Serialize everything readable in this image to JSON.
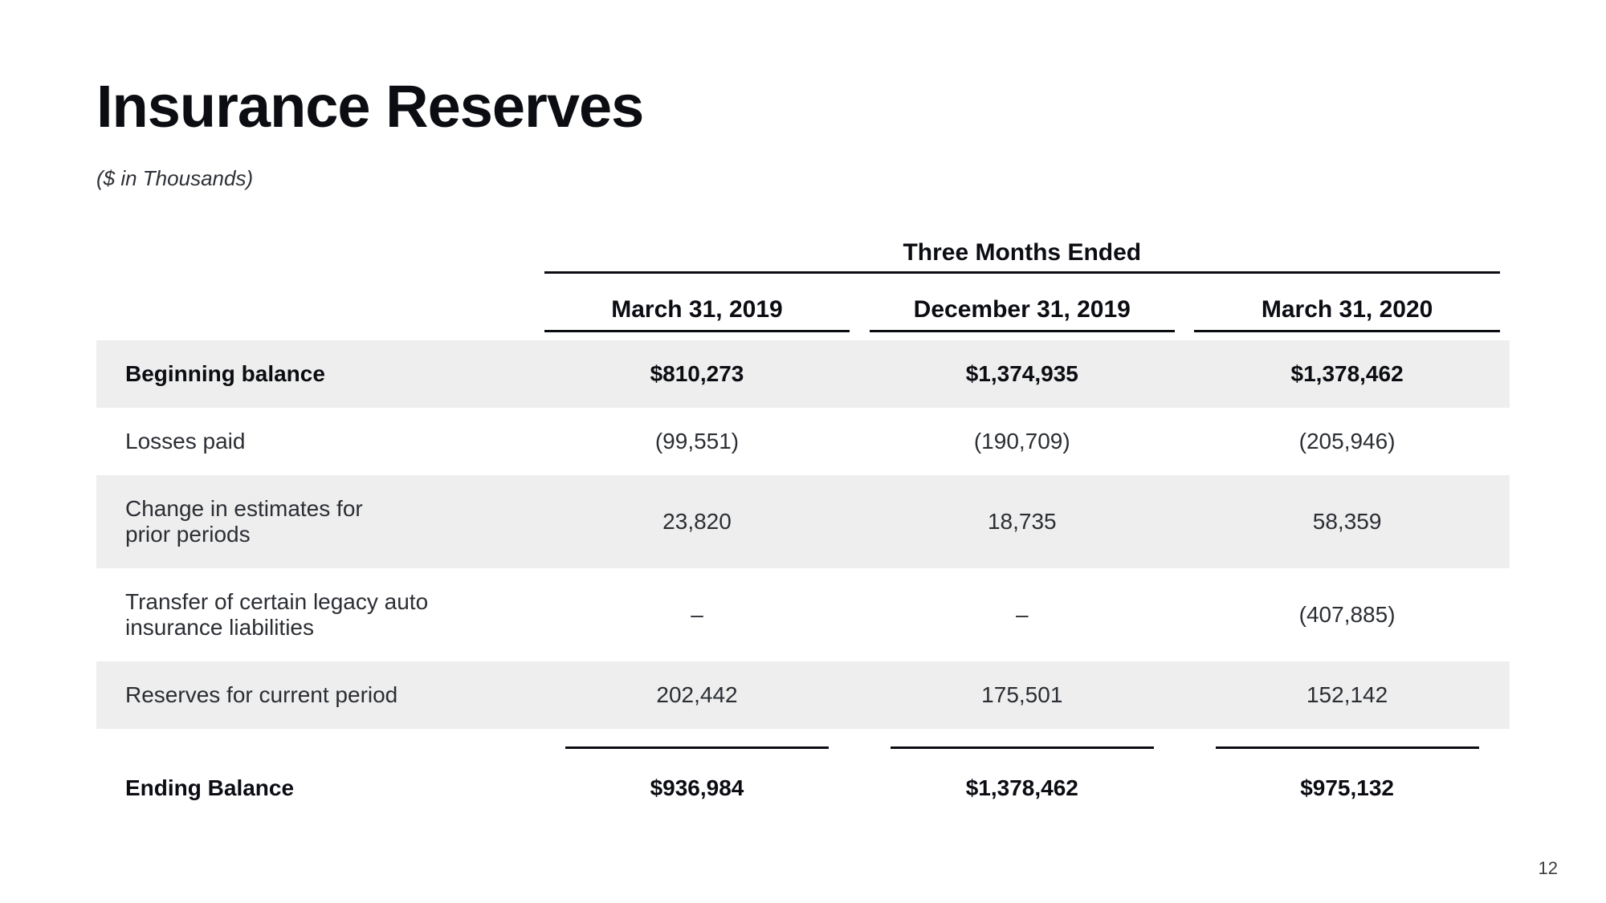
{
  "title": "Insurance Reserves",
  "subtitle": "($ in Thousands)",
  "span_header": "Three Months Ended",
  "columns": [
    "March 31, 2019",
    "December 31, 2019",
    "March 31, 2020"
  ],
  "rows": [
    {
      "label": "Beginning balance",
      "values": [
        "$810,273",
        "$1,374,935",
        "$1,378,462"
      ],
      "bold": true,
      "shade": true
    },
    {
      "label": "Losses paid",
      "values": [
        "(99,551)",
        "(190,709)",
        "(205,946)"
      ],
      "bold": false,
      "shade": false
    },
    {
      "label": "Change in estimates for\nprior periods",
      "values": [
        "23,820",
        "18,735",
        "58,359"
      ],
      "bold": false,
      "shade": true
    },
    {
      "label": "Transfer of certain legacy auto\ninsurance liabilities",
      "values": [
        "–",
        "–",
        "(407,885)"
      ],
      "bold": false,
      "shade": false
    },
    {
      "label": "Reserves for current period",
      "values": [
        "202,442",
        "175,501",
        "152,142"
      ],
      "bold": false,
      "shade": true
    },
    {
      "label": "Ending Balance",
      "values": [
        "$936,984",
        "$1,378,462",
        "$975,132"
      ],
      "bold": true,
      "shade": false
    }
  ],
  "page_number": "12",
  "colors": {
    "background": "#ffffff",
    "text": "#0b0d12",
    "row_shade": "#eeeeee",
    "rule": "#0b0d12"
  },
  "typography": {
    "title_size_pt": 56,
    "header_size_pt": 22,
    "body_size_pt": 21
  }
}
